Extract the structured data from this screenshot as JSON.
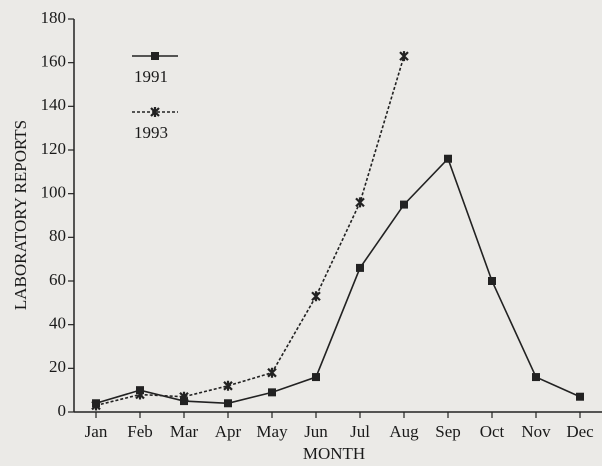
{
  "chart_data": {
    "type": "line",
    "x_label": "MONTH",
    "y_label": "LABORATORY REPORTS",
    "categories": [
      "Jan",
      "Feb",
      "Mar",
      "Apr",
      "May",
      "Jun",
      "Jul",
      "Aug",
      "Sep",
      "Oct",
      "Nov",
      "Dec"
    ],
    "series": [
      {
        "name": "1991",
        "color": "#222222",
        "dash": "solid",
        "marker": "square",
        "values": [
          4,
          10,
          5,
          4,
          9,
          16,
          66,
          95,
          116,
          60,
          16,
          7
        ]
      },
      {
        "name": "1993",
        "color": "#222222",
        "dash": "dotted",
        "marker": "x",
        "values": [
          3,
          8,
          7,
          12,
          18,
          53,
          96,
          163,
          null,
          null,
          null,
          null
        ]
      }
    ],
    "ylim": [
      0,
      180
    ],
    "yticks": [
      0,
      20,
      40,
      60,
      80,
      100,
      120,
      140,
      160,
      180
    ],
    "grid": false,
    "legend": "upper left"
  }
}
